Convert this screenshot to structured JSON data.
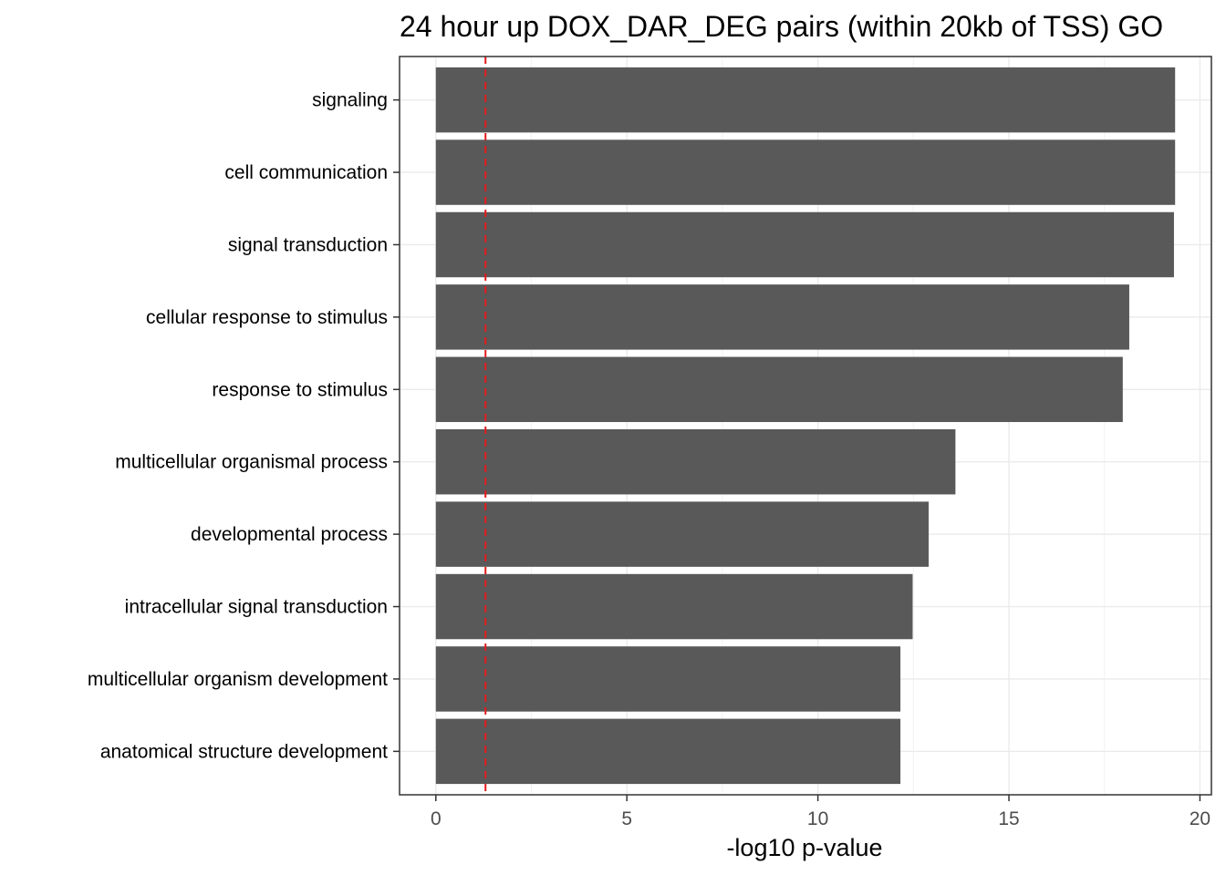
{
  "chart_data": {
    "type": "bar",
    "orientation": "horizontal",
    "title": "24 hour up DOX_DAR_DEG pairs (within 20kb of TSS) GO",
    "xlabel": "-log10 p-value",
    "ylabel": "",
    "categories": [
      "signaling",
      "cell communication",
      "signal transduction",
      "cellular response to stimulus",
      "response to stimulus",
      "multicellular organismal process",
      "developmental process",
      "intracellular signal transduction",
      "multicellular organism development",
      "anatomical structure development"
    ],
    "values": [
      19.35,
      19.35,
      19.32,
      18.15,
      17.98,
      13.6,
      12.9,
      12.48,
      12.16,
      12.16
    ],
    "xlim": [
      -0.95,
      20.3
    ],
    "xticks": [
      0,
      5,
      10,
      15,
      20
    ],
    "xtick_labels": [
      "0",
      "5",
      "10",
      "15",
      "20"
    ],
    "reference_line": {
      "x": 1.3,
      "style": "dashed",
      "color": "#e41a1c"
    },
    "bar_color": "#595959",
    "grid": true,
    "legend": "none"
  }
}
